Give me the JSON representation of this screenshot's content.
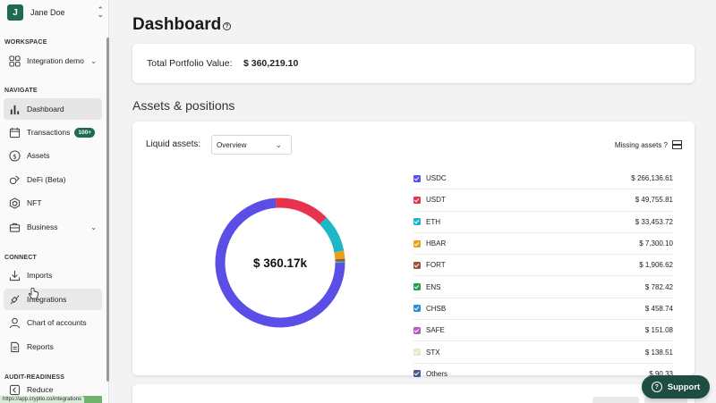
{
  "user": {
    "initial": "J",
    "name": "Jane Doe"
  },
  "sidebar": {
    "workspace_label": "WORKSPACE",
    "workspace_item": "Integration demo",
    "navigate_label": "NAVIGATE",
    "nav": [
      {
        "label": "Dashboard",
        "icon": "bar-chart-icon"
      },
      {
        "label": "Transactions",
        "icon": "calendar-icon",
        "badge": "100+"
      },
      {
        "label": "Assets",
        "icon": "dollar-icon"
      },
      {
        "label": "DeFi (Beta)",
        "icon": "defi-icon"
      },
      {
        "label": "NFT",
        "icon": "hexagon-icon"
      },
      {
        "label": "Business",
        "icon": "briefcase-icon"
      }
    ],
    "connect_label": "CONNECT",
    "connect": [
      {
        "label": "Imports",
        "icon": "download-icon"
      },
      {
        "label": "Integrations",
        "icon": "plug-icon"
      },
      {
        "label": "Chart of accounts",
        "icon": "person-icon"
      },
      {
        "label": "Reports",
        "icon": "document-icon"
      }
    ],
    "audit_label": "AUDIT-READINESS",
    "audit_item": "Reduce"
  },
  "status_url": "https://app.cryptio.co/integrations",
  "page": {
    "title": "Dashboard",
    "portfolio_label": "Total Portfolio Value:",
    "portfolio_value": "$ 360,219.10",
    "assets_title": "Assets & positions",
    "liquid_label": "Liquid assets:",
    "select_value": "Overview",
    "missing_label": "Missing assets ?",
    "donut_center": "$ 360.17k"
  },
  "chart_data": {
    "type": "pie",
    "center_label": "$ 360.17k",
    "series": [
      {
        "name": "USDC",
        "value": 266136.61,
        "display": "$ 266,136.61",
        "color": "#5a4ee6"
      },
      {
        "name": "USDT",
        "value": 49755.81,
        "display": "$ 49,755.81",
        "color": "#e8334f"
      },
      {
        "name": "ETH",
        "value": 33453.72,
        "display": "$ 33,453.72",
        "color": "#1fb7c7"
      },
      {
        "name": "HBAR",
        "value": 7300.1,
        "display": "$ 7,300.10",
        "color": "#e8a01b"
      },
      {
        "name": "FORT",
        "value": 1906.62,
        "display": "$ 1,906.62",
        "color": "#a0523d"
      },
      {
        "name": "ENS",
        "value": 782.42,
        "display": "$ 782.42",
        "color": "#22a04a"
      },
      {
        "name": "CHSB",
        "value": 458.74,
        "display": "$ 458.74",
        "color": "#2a8ed8"
      },
      {
        "name": "SAFE",
        "value": 151.08,
        "display": "$ 151.08",
        "color": "#b35bc7"
      },
      {
        "name": "STX",
        "value": 138.51,
        "display": "$ 138.51",
        "color": "#e6e6c8"
      },
      {
        "name": "Others",
        "value": 90.33,
        "display": "$ 90.33",
        "color": "#4a5c8a"
      }
    ]
  },
  "support_label": "Support"
}
